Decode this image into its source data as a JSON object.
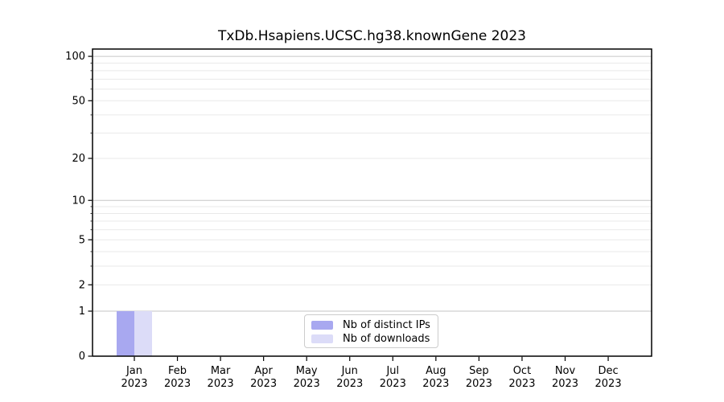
{
  "chart_data": {
    "type": "bar",
    "title": "TxDb.Hsapiens.UCSC.hg38.knownGene 2023",
    "xlabel": "",
    "ylabel": "",
    "categories": [
      "Jan 2023",
      "Feb 2023",
      "Mar 2023",
      "Apr 2023",
      "May 2023",
      "Jun 2023",
      "Jul 2023",
      "Aug 2023",
      "Sep 2023",
      "Oct 2023",
      "Nov 2023",
      "Dec 2023"
    ],
    "series": [
      {
        "name": "Nb of distinct IPs",
        "color": "#a8a8f0",
        "values": [
          1,
          0,
          0,
          0,
          0,
          0,
          0,
          0,
          0,
          0,
          0,
          0
        ]
      },
      {
        "name": "Nb of downloads",
        "color": "#dcdcf8",
        "values": [
          1,
          0,
          0,
          0,
          0,
          0,
          0,
          0,
          0,
          0,
          0,
          0
        ]
      }
    ],
    "yticks": [
      0,
      1,
      2,
      5,
      10,
      20,
      50,
      100
    ],
    "major_gridlines": [
      1,
      10,
      100
    ],
    "ylim": [
      0,
      112
    ],
    "yscale": "log1p",
    "grid": true,
    "legend_position": "bottom-center"
  }
}
